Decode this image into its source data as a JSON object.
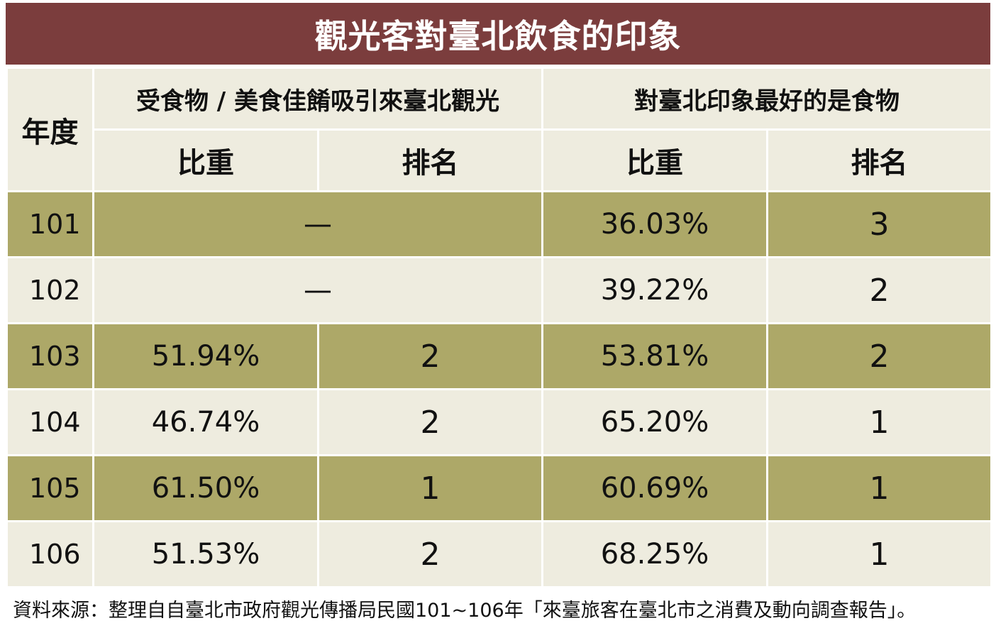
{
  "title": "觀光客對臺北飲食的印象",
  "chart_data": {
    "type": "table",
    "headers": {
      "year": "年度",
      "group1": "受食物 / 美食佳餚吸引來臺北觀光",
      "group2": "對臺北印象最好的是食物",
      "share": "比重",
      "rank": "排名"
    },
    "rows": [
      {
        "year": "101",
        "g1_merged": "—",
        "g2_share": "36.03%",
        "g2_rank": "3"
      },
      {
        "year": "102",
        "g1_merged": "—",
        "g2_share": "39.22%",
        "g2_rank": "2"
      },
      {
        "year": "103",
        "g1_share": "51.94%",
        "g1_rank": "2",
        "g2_share": "53.81%",
        "g2_rank": "2"
      },
      {
        "year": "104",
        "g1_share": "46.74%",
        "g1_rank": "2",
        "g2_share": "65.20%",
        "g2_rank": "1"
      },
      {
        "year": "105",
        "g1_share": "61.50%",
        "g1_rank": "1",
        "g2_share": "60.69%",
        "g2_rank": "1"
      },
      {
        "year": "106",
        "g1_share": "51.53%",
        "g1_rank": "2",
        "g2_share": "68.25%",
        "g2_rank": "1"
      }
    ]
  },
  "source": "資料來源：整理自自臺北市政府觀光傳播局民國101~106年「來臺旅客在臺北市之消費及動向調查報告」。",
  "colors": {
    "title_bg": "#7b3d3d",
    "row_dark": "#ada868",
    "row_light": "#eeecdf"
  }
}
